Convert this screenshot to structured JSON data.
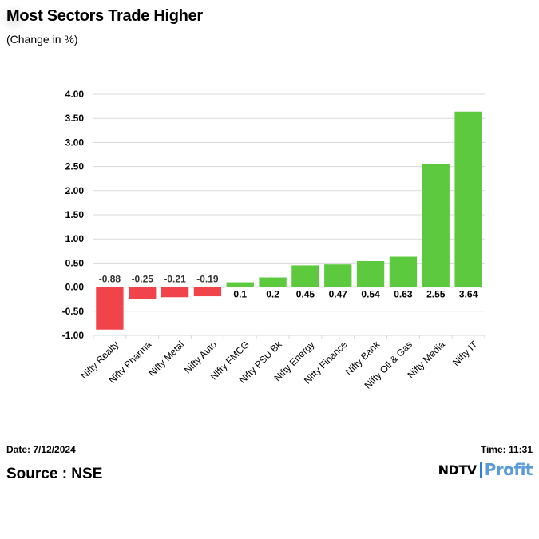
{
  "header": {
    "title": "Most Sectors Trade Higher",
    "subtitle": "(Change in %)"
  },
  "footer": {
    "date": "Date: 7/12/2024",
    "time": "Time: 11:31",
    "source": "Source : NSE",
    "logo_primary": "NDTV",
    "logo_secondary": "Profit"
  },
  "colors": {
    "positive": "#5cc93f",
    "negative": "#f0444a",
    "grid": "#d9d9d9",
    "label_positive": "#000000",
    "label_negative": "#333333"
  },
  "chart_data": {
    "type": "bar",
    "title": "Most Sectors Trade Higher",
    "subtitle": "(Change in %)",
    "xlabel": "",
    "ylabel": "",
    "categories": [
      "Nifty Realty",
      "Nifty Pharma",
      "Nifty Metal",
      "Nifty Auto",
      "Nifty FMCG",
      "Nifty PSU Bk",
      "Nifty Energy",
      "Nifty Finance",
      "Nifty Bank",
      "Nifty Oil & Gas",
      "Nifty Media",
      "Nifty IT"
    ],
    "values": [
      -0.88,
      -0.25,
      -0.21,
      -0.19,
      0.1,
      0.2,
      0.45,
      0.47,
      0.54,
      0.63,
      2.55,
      3.64
    ],
    "value_labels": [
      "-0.88",
      "-0.25",
      "-0.21",
      "-0.19",
      "0.1",
      "0.2",
      "0.45",
      "0.47",
      "0.54",
      "0.63",
      "2.55",
      "3.64"
    ],
    "ylim": [
      -1.0,
      4.0
    ],
    "yticks": [
      "4.00",
      "3.50",
      "3.00",
      "2.50",
      "2.00",
      "1.50",
      "1.00",
      "0.50",
      "0.00",
      "-0.50",
      "-1.00"
    ],
    "ytick_values": [
      4.0,
      3.5,
      3.0,
      2.5,
      2.0,
      1.5,
      1.0,
      0.5,
      0.0,
      -0.5,
      -1.0
    ],
    "grid": true,
    "legend": "none"
  }
}
